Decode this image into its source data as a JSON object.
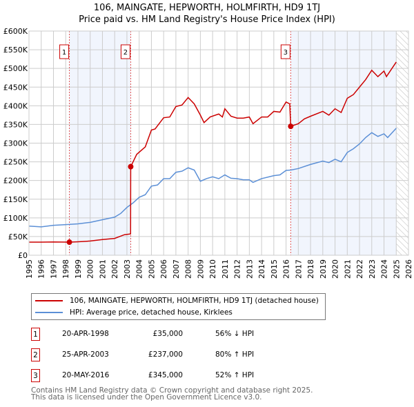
{
  "chart_data": {
    "type": "line",
    "title": "106, MAINGATE, HEPWORTH, HOLMFIRTH, HD9 1TJ",
    "subtitle": "Price paid vs. HM Land Registry's House Price Index (HPI)",
    "xlim": [
      1995,
      2026
    ],
    "ylim": [
      0,
      600000
    ],
    "yticks": [
      0,
      50000,
      100000,
      150000,
      200000,
      250000,
      300000,
      350000,
      400000,
      450000,
      500000,
      550000,
      600000
    ],
    "ytick_labels": [
      "£0",
      "£50K",
      "£100K",
      "£150K",
      "£200K",
      "£250K",
      "£300K",
      "£350K",
      "£400K",
      "£450K",
      "£500K",
      "£550K",
      "£600K"
    ],
    "xticks": [
      1995,
      1996,
      1997,
      1998,
      1999,
      2000,
      2001,
      2002,
      2003,
      2004,
      2005,
      2006,
      2007,
      2008,
      2009,
      2010,
      2011,
      2012,
      2013,
      2014,
      2015,
      2016,
      2017,
      2018,
      2019,
      2020,
      2021,
      2022,
      2023,
      2024,
      2025,
      2026
    ],
    "grid": true,
    "shaded_ranges": [
      [
        1998.3,
        2003.31
      ],
      [
        2016.38,
        2025.0
      ]
    ],
    "hatched_range": [
      2025.0,
      2026
    ],
    "series": [
      {
        "name": "106, MAINGATE, HEPWORTH, HOLMFIRTH, HD9 1TJ (detached house)",
        "color": "#cc0000",
        "x": [
          1995,
          1996,
          1997,
          1998.3,
          1999,
          2000,
          2001,
          2002,
          2002.8,
          2003.3,
          2003.31,
          2003.8,
          2004.5,
          2005,
          2005.3,
          2006,
          2006.5,
          2007,
          2007.5,
          2008,
          2008.5,
          2009,
          2009.3,
          2009.8,
          2010.5,
          2010.8,
          2011,
          2011.5,
          2012,
          2012.5,
          2013,
          2013.3,
          2014,
          2014.5,
          2015,
          2015.5,
          2016,
          2016.3,
          2016.38,
          2017,
          2017.5,
          2018,
          2019,
          2019.5,
          2020,
          2020.5,
          2021,
          2021.5,
          2022,
          2022.5,
          2023,
          2023.5,
          2024,
          2024.2,
          2025
        ],
        "y": [
          35000,
          35000,
          35500,
          35000,
          36000,
          38000,
          42000,
          45000,
          55000,
          57000,
          237000,
          270000,
          290000,
          335000,
          338000,
          368000,
          370000,
          398000,
          402000,
          422000,
          405000,
          375000,
          355000,
          370000,
          378000,
          370000,
          392000,
          372000,
          367000,
          367000,
          370000,
          352000,
          370000,
          370000,
          385000,
          383000,
          410000,
          405000,
          345000,
          352000,
          365000,
          372000,
          385000,
          375000,
          392000,
          382000,
          420000,
          430000,
          450000,
          470000,
          495000,
          478000,
          493000,
          478000,
          517000
        ]
      },
      {
        "name": "HPI: Average price, detached house, Kirklees",
        "color": "#5b8fd6",
        "x": [
          1995,
          1996,
          1997,
          1998,
          1999,
          2000,
          2001,
          2002,
          2002.5,
          2003,
          2003.5,
          2004,
          2004.5,
          2005,
          2005.5,
          2006,
          2006.5,
          2007,
          2007.5,
          2008,
          2008.5,
          2009,
          2009.5,
          2010,
          2010.5,
          2011,
          2011.5,
          2012,
          2012.5,
          2013,
          2013.3,
          2014,
          2015,
          2015.5,
          2016,
          2016.4,
          2017,
          2018,
          2019,
          2019.5,
          2020,
          2020.5,
          2021,
          2021.5,
          2022,
          2022.5,
          2023,
          2023.5,
          2024,
          2024.3,
          2025
        ],
        "y": [
          78000,
          76000,
          80000,
          82000,
          84000,
          88000,
          95000,
          102000,
          112000,
          128000,
          140000,
          155000,
          162000,
          185000,
          188000,
          205000,
          205000,
          222000,
          225000,
          234000,
          228000,
          198000,
          205000,
          210000,
          205000,
          215000,
          206000,
          205000,
          202000,
          202000,
          195000,
          205000,
          213000,
          215000,
          227000,
          228000,
          232000,
          243000,
          252000,
          248000,
          257000,
          250000,
          275000,
          285000,
          298000,
          315000,
          328000,
          318000,
          325000,
          315000,
          340000
        ]
      }
    ],
    "sales": [
      {
        "label": "1",
        "date": "20-APR-1998",
        "x": 1998.3,
        "price": 35000,
        "price_text": "£35,000",
        "hpi": "56% ↓ HPI"
      },
      {
        "label": "2",
        "date": "25-APR-2003",
        "x": 2003.31,
        "price": 237000,
        "price_text": "£237,000",
        "hpi": "80% ↑ HPI"
      },
      {
        "label": "3",
        "date": "20-MAY-2016",
        "x": 2016.38,
        "price": 345000,
        "price_text": "£345,000",
        "hpi": "52% ↑ HPI"
      }
    ]
  },
  "footer": {
    "line1": "Contains HM Land Registry data © Crown copyright and database right 2025.",
    "line2": "This data is licensed under the Open Government Licence v3.0."
  }
}
